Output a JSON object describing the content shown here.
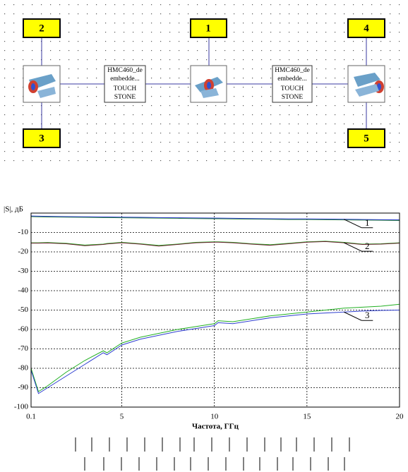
{
  "diagram": {
    "ports": [
      {
        "label": "2"
      },
      {
        "label": "1"
      },
      {
        "label": "4"
      },
      {
        "label": "3"
      },
      {
        "label": "5"
      }
    ],
    "blocks": [
      {
        "lines": [
          "HMC460_de",
          "embedde...",
          "TOUCH",
          "STONE"
        ]
      },
      {
        "lines": [
          "HMC460_de",
          "embedde...",
          "TOUCH",
          "STONE"
        ]
      }
    ]
  },
  "chart_data": {
    "type": "line",
    "ylabel": "|S|, дБ",
    "xlabel": "Частота, ГГц",
    "x": [
      0.1,
      0.5,
      1,
      2,
      3,
      4,
      4.2,
      5,
      6,
      7,
      8,
      9,
      10,
      10.2,
      11,
      12,
      13,
      14,
      15,
      16,
      17,
      18,
      19,
      20
    ],
    "series": [
      {
        "color": "#1e7a2a",
        "values": [
          -1.8,
          -1.9,
          -2.0,
          -2.1,
          -2.2,
          -2.3,
          -2.3,
          -2.4,
          -2.5,
          -2.6,
          -2.7,
          -2.8,
          -2.9,
          -2.9,
          -3.0,
          -3.1,
          -3.2,
          -3.3,
          -3.3,
          -3.4,
          -3.5,
          -3.6,
          -3.7,
          -3.8
        ]
      },
      {
        "color": "#2f3fd0",
        "values": [
          -1.5,
          -1.6,
          -1.7,
          -1.8,
          -1.9,
          -2.0,
          -2.0,
          -2.1,
          -2.2,
          -2.3,
          -2.4,
          -2.5,
          -2.6,
          -2.6,
          -2.7,
          -2.8,
          -2.9,
          -3.0,
          -3.0,
          -3.1,
          -3.2,
          -3.3,
          -3.4,
          -3.5
        ]
      },
      {
        "color": "#22b022",
        "values": [
          -15.3,
          -15.3,
          -15.2,
          -15.6,
          -16.5,
          -16.0,
          -15.7,
          -15.1,
          -15.8,
          -16.7,
          -16.0,
          -15.1,
          -14.8,
          -14.8,
          -15.1,
          -15.8,
          -16.3,
          -15.6,
          -14.8,
          -14.5,
          -15.1,
          -16.0,
          -15.8,
          -15.3
        ]
      },
      {
        "color": "#6b1f2f",
        "values": [
          -15.5,
          -15.5,
          -15.4,
          -15.8,
          -16.8,
          -16.2,
          -15.9,
          -15.3,
          -16.0,
          -17.0,
          -16.2,
          -15.3,
          -15.0,
          -15.0,
          -15.3,
          -16.0,
          -16.6,
          -15.8,
          -15.0,
          -14.7,
          -15.3,
          -16.2,
          -16.0,
          -15.5
        ]
      },
      {
        "color": "#22b022",
        "values": [
          -80,
          -92,
          -89,
          -82,
          -76,
          -71,
          -72,
          -67,
          -64,
          -62,
          -60,
          -58.5,
          -57,
          -55.5,
          -56,
          -54.5,
          -53,
          -52,
          -51,
          -50,
          -49,
          -48.5,
          -48,
          -47
        ]
      },
      {
        "color": "#2f3fd0",
        "values": [
          -81,
          -93,
          -90,
          -84,
          -78,
          -72,
          -73,
          -68,
          -65,
          -63,
          -61,
          -59.5,
          -58,
          -56.5,
          -57,
          -55.5,
          -54,
          -53,
          -52,
          -51.5,
          -51,
          -50.5,
          -50.2,
          -50
        ]
      }
    ],
    "annotations": [
      {
        "text": "1",
        "x": 17,
        "y": -3.2
      },
      {
        "text": "2",
        "x": 17,
        "y": -15.3
      },
      {
        "text": "3",
        "x": 17,
        "y": -51
      }
    ],
    "xlim": [
      0.1,
      20
    ],
    "xticks": [
      0.1,
      5,
      10,
      15,
      20
    ],
    "ylim": [
      -100,
      0
    ],
    "yticks": [
      -100,
      -90,
      -80,
      -70,
      -60,
      -50,
      -40,
      -30,
      -20,
      -10
    ],
    "grid": true
  }
}
